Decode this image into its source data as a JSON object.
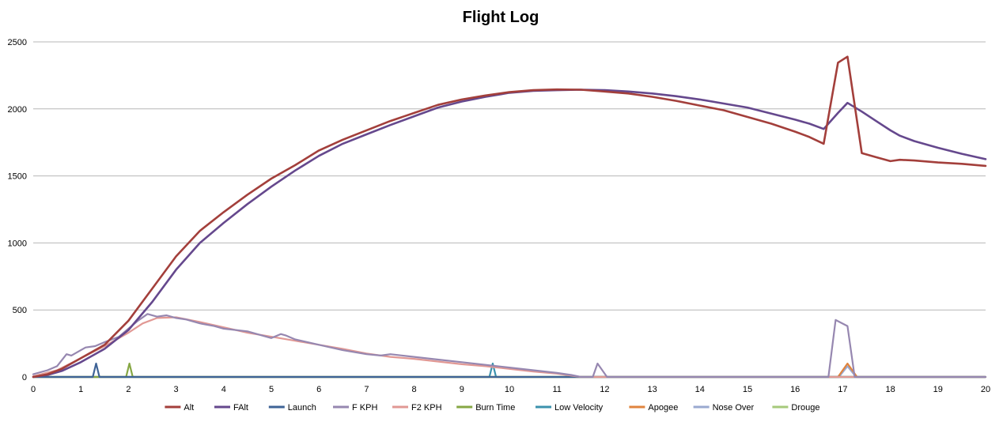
{
  "chart_data": {
    "type": "line",
    "title": "Flight Log",
    "xlabel": "",
    "ylabel": "",
    "xlim": [
      0,
      20
    ],
    "ylim": [
      0,
      2500
    ],
    "x_ticks": [
      "0",
      "1",
      "2",
      "3",
      "4",
      "5",
      "6",
      "7",
      "8",
      "9",
      "10",
      "11",
      "12",
      "13",
      "14",
      "15",
      "16",
      "17",
      "18",
      "19",
      "20"
    ],
    "y_ticks": [
      "0",
      "500",
      "1000",
      "1500",
      "2000",
      "2500"
    ],
    "grid": "horizontal",
    "legend_position": "bottom",
    "series": [
      {
        "name": "Alt",
        "color": "#a33f3b",
        "points": [
          [
            0,
            0
          ],
          [
            0.3,
            20
          ],
          [
            0.6,
            60
          ],
          [
            1,
            140
          ],
          [
            1.5,
            240
          ],
          [
            2,
            420
          ],
          [
            2.5,
            660
          ],
          [
            3,
            900
          ],
          [
            3.5,
            1090
          ],
          [
            4,
            1230
          ],
          [
            4.5,
            1360
          ],
          [
            5,
            1480
          ],
          [
            5.5,
            1580
          ],
          [
            6,
            1690
          ],
          [
            6.5,
            1770
          ],
          [
            7,
            1840
          ],
          [
            7.5,
            1910
          ],
          [
            8,
            1970
          ],
          [
            8.5,
            2030
          ],
          [
            9,
            2070
          ],
          [
            9.5,
            2100
          ],
          [
            10,
            2125
          ],
          [
            10.5,
            2140
          ],
          [
            11,
            2145
          ],
          [
            11.5,
            2143
          ],
          [
            12,
            2130
          ],
          [
            12.5,
            2115
          ],
          [
            13,
            2090
          ],
          [
            13.5,
            2060
          ],
          [
            14,
            2025
          ],
          [
            14.5,
            1990
          ],
          [
            15,
            1940
          ],
          [
            15.5,
            1890
          ],
          [
            16,
            1830
          ],
          [
            16.3,
            1790
          ],
          [
            16.6,
            1740
          ],
          [
            16.9,
            2345
          ],
          [
            17.1,
            2390
          ],
          [
            17.4,
            1670
          ],
          [
            17.7,
            1640
          ],
          [
            18,
            1610
          ],
          [
            18.2,
            1620
          ],
          [
            18.5,
            1615
          ],
          [
            19,
            1600
          ],
          [
            19.5,
            1590
          ],
          [
            20,
            1575
          ]
        ]
      },
      {
        "name": "FAlt",
        "color": "#65488d",
        "points": [
          [
            0,
            0
          ],
          [
            0.3,
            15
          ],
          [
            0.6,
            45
          ],
          [
            1,
            110
          ],
          [
            1.5,
            210
          ],
          [
            2,
            350
          ],
          [
            2.5,
            560
          ],
          [
            3,
            800
          ],
          [
            3.5,
            1000
          ],
          [
            4,
            1150
          ],
          [
            4.5,
            1290
          ],
          [
            5,
            1420
          ],
          [
            5.5,
            1540
          ],
          [
            6,
            1650
          ],
          [
            6.5,
            1740
          ],
          [
            7,
            1810
          ],
          [
            7.5,
            1880
          ],
          [
            8,
            1945
          ],
          [
            8.5,
            2010
          ],
          [
            9,
            2055
          ],
          [
            9.5,
            2090
          ],
          [
            10,
            2120
          ],
          [
            10.5,
            2135
          ],
          [
            11,
            2140
          ],
          [
            11.5,
            2143
          ],
          [
            12,
            2140
          ],
          [
            12.5,
            2130
          ],
          [
            13,
            2115
          ],
          [
            13.5,
            2095
          ],
          [
            14,
            2070
          ],
          [
            14.5,
            2040
          ],
          [
            15,
            2010
          ],
          [
            15.5,
            1965
          ],
          [
            16,
            1920
          ],
          [
            16.3,
            1890
          ],
          [
            16.6,
            1850
          ],
          [
            16.9,
            1970
          ],
          [
            17.1,
            2045
          ],
          [
            17.4,
            1980
          ],
          [
            17.7,
            1910
          ],
          [
            18,
            1840
          ],
          [
            18.2,
            1800
          ],
          [
            18.5,
            1760
          ],
          [
            19,
            1710
          ],
          [
            19.5,
            1665
          ],
          [
            20,
            1625
          ]
        ]
      },
      {
        "name": "Launch",
        "color": "#3e6396",
        "points": [
          [
            0,
            0
          ],
          [
            1.25,
            0
          ],
          [
            1.32,
            100
          ],
          [
            1.39,
            0
          ],
          [
            20,
            0
          ]
        ]
      },
      {
        "name": "F KPH",
        "color": "#9687b0",
        "points": [
          [
            0,
            20
          ],
          [
            0.3,
            50
          ],
          [
            0.5,
            80
          ],
          [
            0.7,
            170
          ],
          [
            0.8,
            160
          ],
          [
            1,
            200
          ],
          [
            1.1,
            220
          ],
          [
            1.3,
            230
          ],
          [
            1.5,
            260
          ],
          [
            1.8,
            300
          ],
          [
            2,
            360
          ],
          [
            2.2,
            420
          ],
          [
            2.4,
            470
          ],
          [
            2.6,
            450
          ],
          [
            2.8,
            460
          ],
          [
            3,
            440
          ],
          [
            3.2,
            430
          ],
          [
            3.5,
            400
          ],
          [
            3.8,
            380
          ],
          [
            4,
            360
          ],
          [
            4.5,
            340
          ],
          [
            4.8,
            310
          ],
          [
            5,
            290
          ],
          [
            5.2,
            320
          ],
          [
            5.3,
            310
          ],
          [
            5.5,
            280
          ],
          [
            6,
            240
          ],
          [
            6.5,
            200
          ],
          [
            7,
            170
          ],
          [
            7.3,
            160
          ],
          [
            7.5,
            170
          ],
          [
            8,
            150
          ],
          [
            8.5,
            130
          ],
          [
            9,
            110
          ],
          [
            9.5,
            90
          ],
          [
            10,
            70
          ],
          [
            10.5,
            50
          ],
          [
            11,
            30
          ],
          [
            11.3,
            15
          ],
          [
            11.5,
            0
          ],
          [
            11.75,
            0
          ],
          [
            11.85,
            100
          ],
          [
            12.05,
            0
          ],
          [
            16.7,
            0
          ],
          [
            16.85,
            425
          ],
          [
            17.1,
            380
          ],
          [
            17.25,
            0
          ],
          [
            20,
            0
          ]
        ]
      },
      {
        "name": "F2 KPH",
        "color": "#e19894",
        "points": [
          [
            0,
            5
          ],
          [
            0.5,
            50
          ],
          [
            1,
            140
          ],
          [
            1.5,
            230
          ],
          [
            2,
            330
          ],
          [
            2.3,
            400
          ],
          [
            2.6,
            440
          ],
          [
            3,
            445
          ],
          [
            3.5,
            410
          ],
          [
            4,
            370
          ],
          [
            4.5,
            330
          ],
          [
            5,
            300
          ],
          [
            5.5,
            270
          ],
          [
            6,
            240
          ],
          [
            6.5,
            210
          ],
          [
            7,
            175
          ],
          [
            7.5,
            150
          ],
          [
            8,
            135
          ],
          [
            8.5,
            115
          ],
          [
            9,
            95
          ],
          [
            9.5,
            80
          ],
          [
            10,
            60
          ],
          [
            10.5,
            40
          ],
          [
            11,
            25
          ],
          [
            11.5,
            0
          ],
          [
            20,
            0
          ]
        ]
      },
      {
        "name": "Burn Time",
        "color": "#86a744",
        "points": [
          [
            0,
            0
          ],
          [
            1.95,
            0
          ],
          [
            2.02,
            100
          ],
          [
            2.09,
            0
          ],
          [
            20,
            0
          ]
        ]
      },
      {
        "name": "Low Velocity",
        "color": "#3b92ad",
        "points": [
          [
            0,
            0
          ],
          [
            9.58,
            0
          ],
          [
            9.65,
            100
          ],
          [
            9.72,
            0
          ],
          [
            20,
            0
          ]
        ]
      },
      {
        "name": "Apogee",
        "color": "#e0843d",
        "points": [
          [
            0,
            0
          ],
          [
            16.9,
            0
          ],
          [
            17.1,
            100
          ],
          [
            17.3,
            0
          ],
          [
            20,
            0
          ]
        ]
      },
      {
        "name": "Nose Over",
        "color": "#9aa9d0",
        "points": [
          [
            0,
            0
          ],
          [
            16.92,
            0
          ],
          [
            17.1,
            80
          ],
          [
            17.28,
            0
          ],
          [
            20,
            0
          ]
        ]
      },
      {
        "name": "Drouge",
        "color": "#a6c97a",
        "points": [
          [
            0,
            0
          ],
          [
            20,
            0
          ]
        ]
      }
    ]
  }
}
